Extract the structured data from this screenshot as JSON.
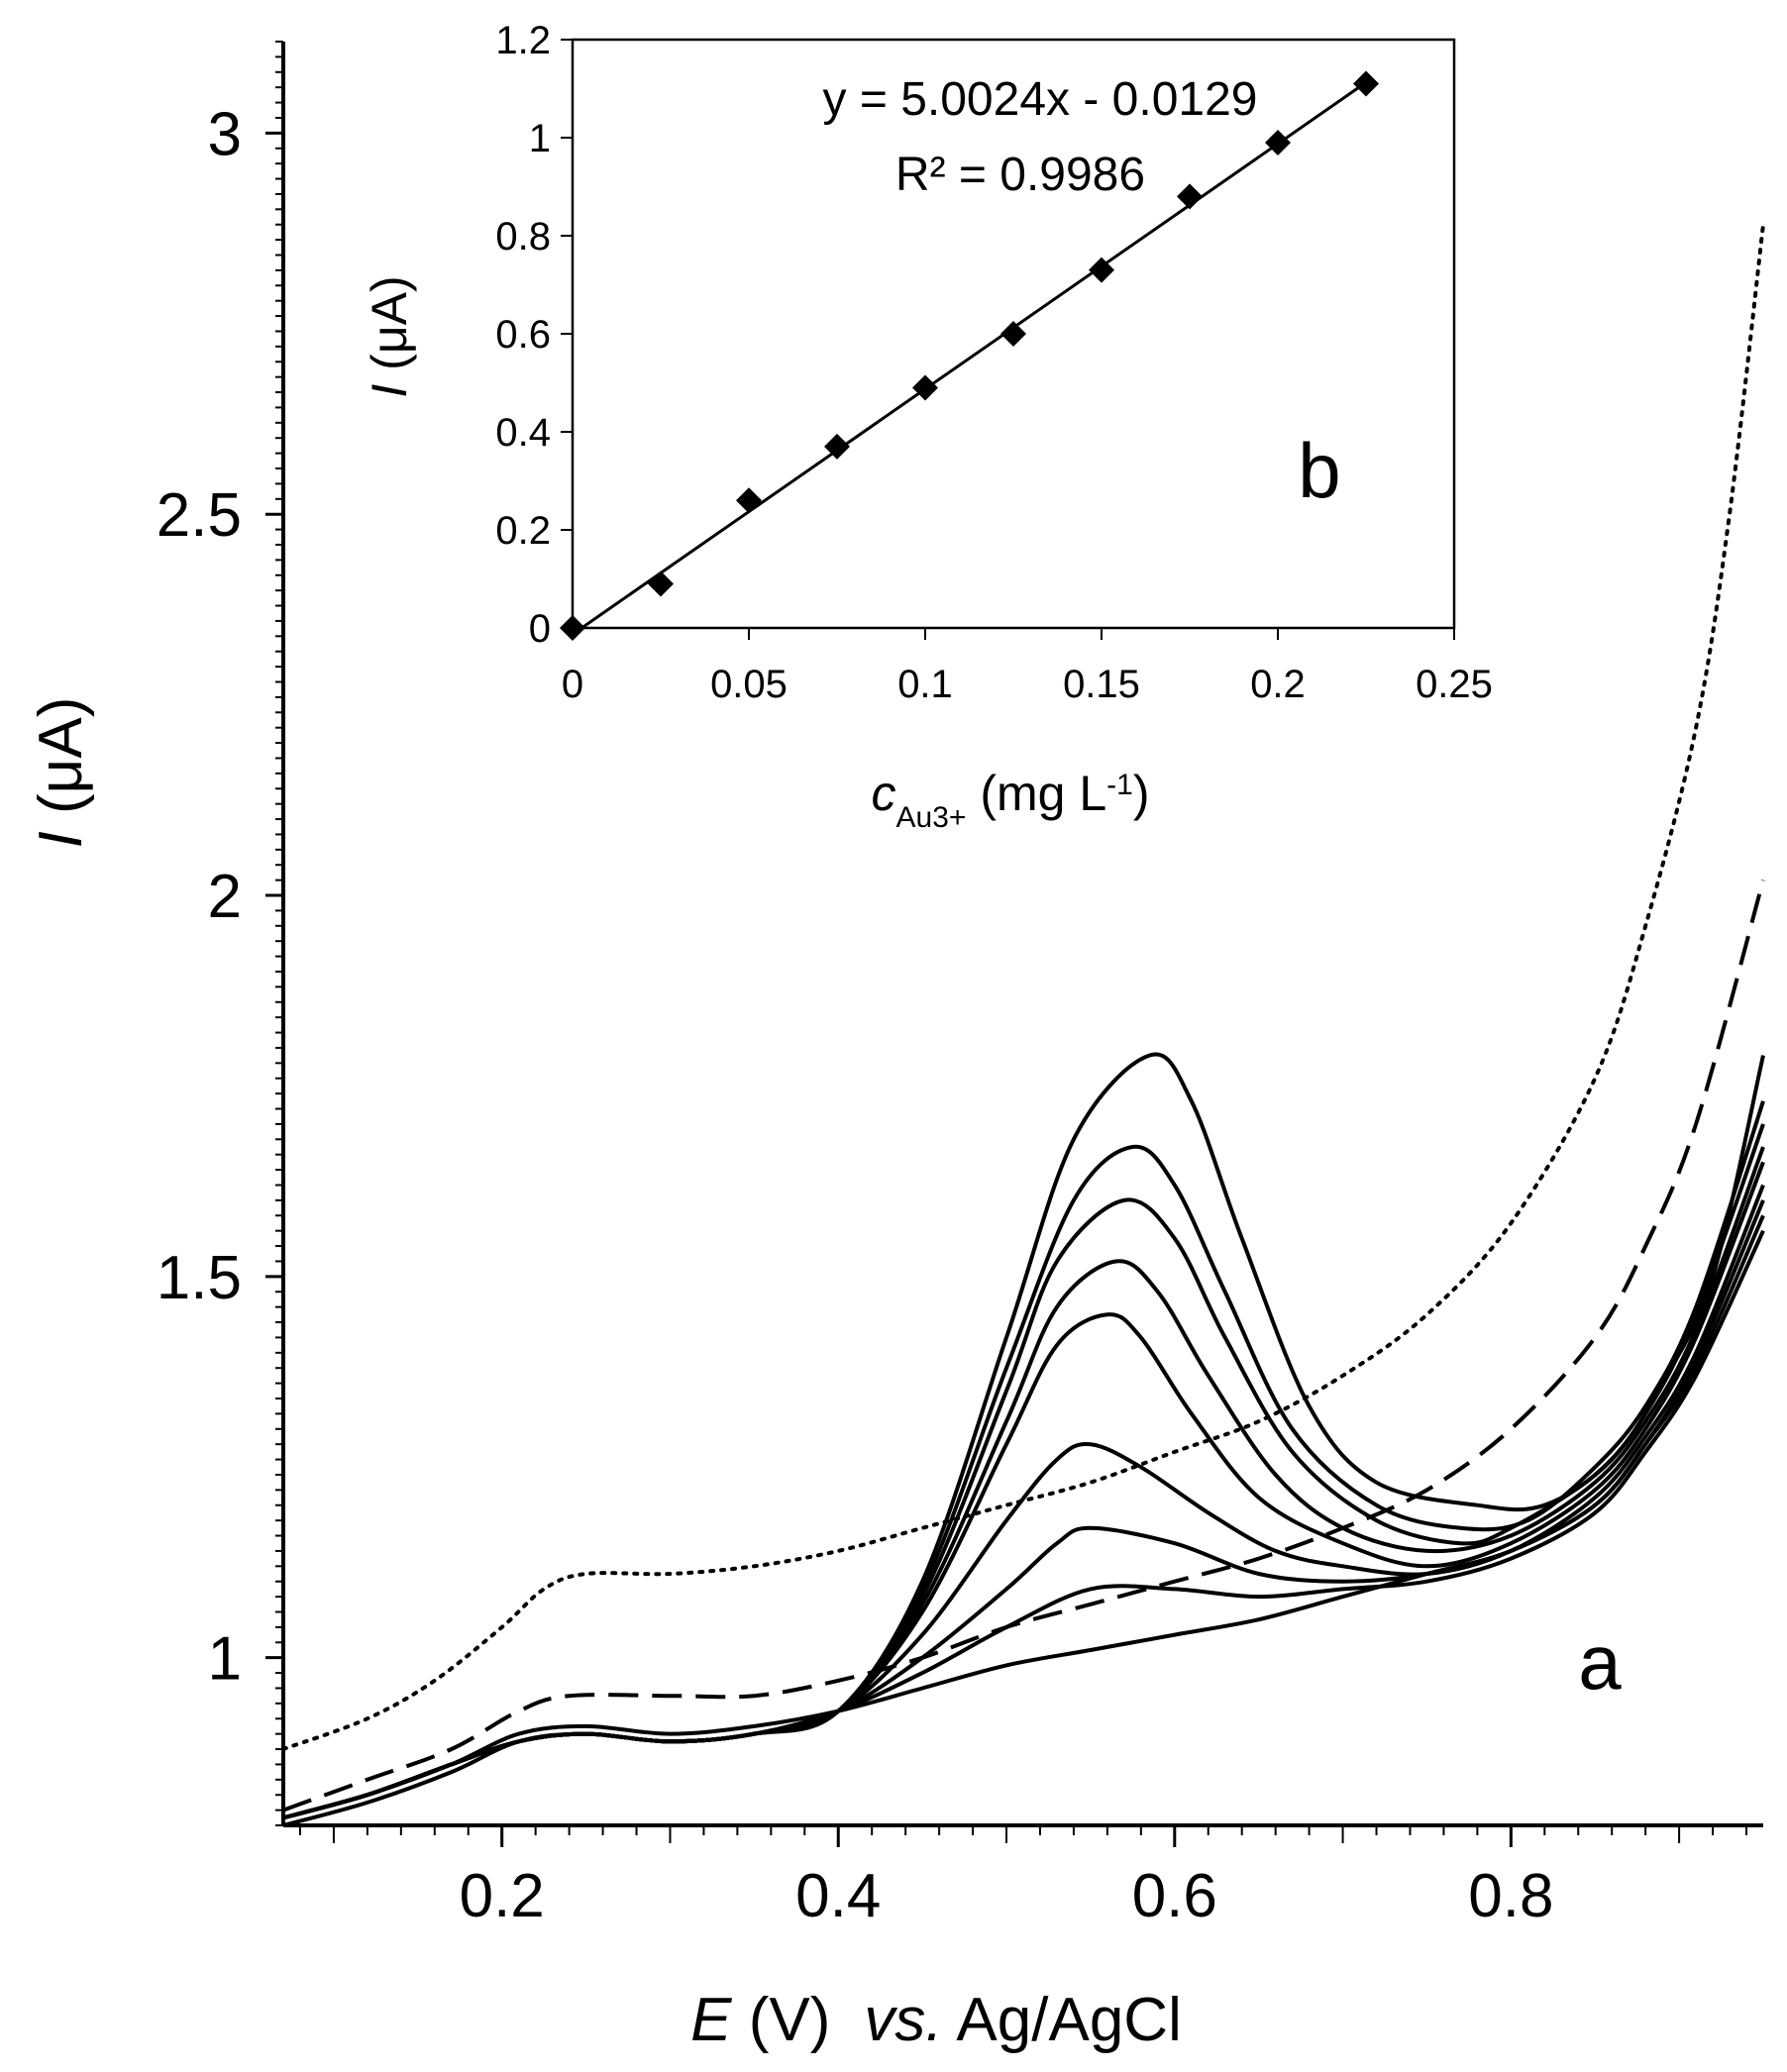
{
  "chart_data": [
    {
      "id": "panel-a",
      "type": "line",
      "panel_label": "a",
      "xlabel": {
        "symbol": "E",
        "unit": " (V)",
        "vs": "vs.",
        "ref": " Ag/AgCl"
      },
      "ylabel": {
        "symbol": "I",
        "unit": " (μA)"
      },
      "xlim": [
        0.07,
        0.95
      ],
      "ylim": [
        0.78,
        3.12
      ],
      "x_ticks": [
        0.2,
        0.4,
        0.6,
        0.8
      ],
      "x_tick_labels": [
        "0.2",
        "0.4",
        "0.6",
        "0.8"
      ],
      "y_ticks": [
        1,
        1.5,
        2,
        2.5,
        3
      ],
      "y_tick_labels": [
        "1",
        "1.5",
        "2",
        "2.5",
        "3"
      ],
      "x_minor_step": 0.02,
      "y_minor_step": 0.02,
      "series": [
        {
          "name": "dotted",
          "style": "dotted",
          "points": [
            [
              0.07,
              0.88
            ],
            [
              0.12,
              0.92
            ],
            [
              0.16,
              0.97
            ],
            [
              0.2,
              1.04
            ],
            [
              0.225,
              1.09
            ],
            [
              0.25,
              1.11
            ],
            [
              0.3,
              1.11
            ],
            [
              0.35,
              1.12
            ],
            [
              0.4,
              1.14
            ],
            [
              0.45,
              1.17
            ],
            [
              0.5,
              1.2
            ],
            [
              0.55,
              1.23
            ],
            [
              0.6,
              1.27
            ],
            [
              0.65,
              1.31
            ],
            [
              0.7,
              1.37
            ],
            [
              0.75,
              1.45
            ],
            [
              0.8,
              1.57
            ],
            [
              0.85,
              1.76
            ],
            [
              0.88,
              1.96
            ],
            [
              0.91,
              2.22
            ],
            [
              0.93,
              2.5
            ],
            [
              0.95,
              2.88
            ]
          ]
        },
        {
          "name": "dashed",
          "style": "dashed",
          "points": [
            [
              0.07,
              0.8
            ],
            [
              0.12,
              0.84
            ],
            [
              0.17,
              0.88
            ],
            [
              0.21,
              0.93
            ],
            [
              0.24,
              0.95
            ],
            [
              0.3,
              0.95
            ],
            [
              0.35,
              0.95
            ],
            [
              0.4,
              0.97
            ],
            [
              0.45,
              1.0
            ],
            [
              0.5,
              1.04
            ],
            [
              0.55,
              1.07
            ],
            [
              0.6,
              1.1
            ],
            [
              0.65,
              1.13
            ],
            [
              0.7,
              1.17
            ],
            [
              0.75,
              1.22
            ],
            [
              0.8,
              1.3
            ],
            [
              0.85,
              1.42
            ],
            [
              0.88,
              1.54
            ],
            [
              0.91,
              1.7
            ],
            [
              0.95,
              2.02
            ]
          ]
        },
        {
          "name": "solid-1",
          "style": "solid",
          "peak": 1.02,
          "points": [
            [
              0.07,
              0.79
            ],
            [
              0.12,
              0.82
            ],
            [
              0.17,
              0.86
            ],
            [
              0.21,
              0.9
            ],
            [
              0.25,
              0.91
            ],
            [
              0.3,
              0.9
            ],
            [
              0.35,
              0.91
            ],
            [
              0.4,
              0.93
            ],
            [
              0.45,
              0.96
            ],
            [
              0.5,
              0.99
            ],
            [
              0.55,
              1.01
            ],
            [
              0.6,
              1.03
            ],
            [
              0.65,
              1.05
            ],
            [
              0.7,
              1.08
            ],
            [
              0.75,
              1.11
            ],
            [
              0.8,
              1.14
            ],
            [
              0.85,
              1.2
            ],
            [
              0.88,
              1.28
            ],
            [
              0.91,
              1.38
            ],
            [
              0.95,
              1.58
            ]
          ]
        },
        {
          "name": "solid-2",
          "style": "solid",
          "peak": 1.09,
          "points": [
            [
              0.07,
              0.78
            ],
            [
              0.12,
              0.81
            ],
            [
              0.17,
              0.85
            ],
            [
              0.21,
              0.89
            ],
            [
              0.25,
              0.9
            ],
            [
              0.3,
              0.89
            ],
            [
              0.35,
              0.9
            ],
            [
              0.4,
              0.93
            ],
            [
              0.45,
              0.98
            ],
            [
              0.5,
              1.04
            ],
            [
              0.55,
              1.09
            ],
            [
              0.6,
              1.09
            ],
            [
              0.65,
              1.08
            ],
            [
              0.7,
              1.09
            ],
            [
              0.75,
              1.1
            ],
            [
              0.8,
              1.13
            ],
            [
              0.85,
              1.19
            ],
            [
              0.88,
              1.27
            ],
            [
              0.91,
              1.37
            ],
            [
              0.95,
              1.56
            ]
          ]
        },
        {
          "name": "solid-3",
          "style": "solid",
          "peak": 1.17,
          "points": [
            [
              0.07,
              0.79
            ],
            [
              0.12,
              0.82
            ],
            [
              0.17,
              0.86
            ],
            [
              0.21,
              0.89
            ],
            [
              0.25,
              0.9
            ],
            [
              0.3,
              0.89
            ],
            [
              0.35,
              0.9
            ],
            [
              0.4,
              0.93
            ],
            [
              0.45,
              1.0
            ],
            [
              0.5,
              1.09
            ],
            [
              0.53,
              1.15
            ],
            [
              0.55,
              1.17
            ],
            [
              0.6,
              1.15
            ],
            [
              0.65,
              1.11
            ],
            [
              0.7,
              1.1
            ],
            [
              0.75,
              1.11
            ],
            [
              0.8,
              1.14
            ],
            [
              0.85,
              1.2
            ],
            [
              0.88,
              1.28
            ],
            [
              0.91,
              1.39
            ],
            [
              0.95,
              1.6
            ]
          ]
        },
        {
          "name": "solid-4",
          "style": "solid",
          "peak": 1.28,
          "points": [
            [
              0.07,
              0.79
            ],
            [
              0.12,
              0.82
            ],
            [
              0.17,
              0.86
            ],
            [
              0.21,
              0.89
            ],
            [
              0.25,
              0.9
            ],
            [
              0.3,
              0.89
            ],
            [
              0.35,
              0.9
            ],
            [
              0.4,
              0.93
            ],
            [
              0.45,
              1.03
            ],
            [
              0.5,
              1.18
            ],
            [
              0.53,
              1.26
            ],
            [
              0.55,
              1.28
            ],
            [
              0.58,
              1.25
            ],
            [
              0.62,
              1.19
            ],
            [
              0.66,
              1.14
            ],
            [
              0.7,
              1.12
            ],
            [
              0.75,
              1.11
            ],
            [
              0.8,
              1.14
            ],
            [
              0.85,
              1.21
            ],
            [
              0.88,
              1.29
            ],
            [
              0.91,
              1.4
            ],
            [
              0.95,
              1.62
            ]
          ]
        },
        {
          "name": "solid-5",
          "style": "solid",
          "peak": 1.45,
          "points": [
            [
              0.07,
              0.79
            ],
            [
              0.12,
              0.82
            ],
            [
              0.17,
              0.86
            ],
            [
              0.21,
              0.89
            ],
            [
              0.25,
              0.9
            ],
            [
              0.3,
              0.89
            ],
            [
              0.35,
              0.9
            ],
            [
              0.4,
              0.93
            ],
            [
              0.45,
              1.06
            ],
            [
              0.5,
              1.28
            ],
            [
              0.53,
              1.41
            ],
            [
              0.56,
              1.45
            ],
            [
              0.58,
              1.42
            ],
            [
              0.61,
              1.32
            ],
            [
              0.65,
              1.21
            ],
            [
              0.7,
              1.15
            ],
            [
              0.75,
              1.12
            ],
            [
              0.8,
              1.15
            ],
            [
              0.85,
              1.22
            ],
            [
              0.88,
              1.3
            ],
            [
              0.91,
              1.42
            ],
            [
              0.95,
              1.65
            ]
          ]
        },
        {
          "name": "solid-6",
          "style": "solid",
          "peak": 1.52,
          "points": [
            [
              0.07,
              0.79
            ],
            [
              0.12,
              0.82
            ],
            [
              0.17,
              0.86
            ],
            [
              0.21,
              0.89
            ],
            [
              0.25,
              0.9
            ],
            [
              0.3,
              0.89
            ],
            [
              0.35,
              0.9
            ],
            [
              0.4,
              0.93
            ],
            [
              0.45,
              1.07
            ],
            [
              0.5,
              1.31
            ],
            [
              0.53,
              1.46
            ],
            [
              0.565,
              1.52
            ],
            [
              0.59,
              1.48
            ],
            [
              0.62,
              1.37
            ],
            [
              0.66,
              1.24
            ],
            [
              0.7,
              1.17
            ],
            [
              0.75,
              1.14
            ],
            [
              0.8,
              1.16
            ],
            [
              0.85,
              1.23
            ],
            [
              0.88,
              1.31
            ],
            [
              0.91,
              1.43
            ],
            [
              0.95,
              1.67
            ]
          ]
        },
        {
          "name": "solid-7",
          "style": "solid",
          "peak": 1.6,
          "points": [
            [
              0.07,
              0.79
            ],
            [
              0.12,
              0.82
            ],
            [
              0.17,
              0.86
            ],
            [
              0.21,
              0.89
            ],
            [
              0.25,
              0.9
            ],
            [
              0.3,
              0.89
            ],
            [
              0.35,
              0.9
            ],
            [
              0.4,
              0.93
            ],
            [
              0.45,
              1.08
            ],
            [
              0.5,
              1.35
            ],
            [
              0.53,
              1.52
            ],
            [
              0.57,
              1.6
            ],
            [
              0.6,
              1.55
            ],
            [
              0.63,
              1.42
            ],
            [
              0.67,
              1.27
            ],
            [
              0.72,
              1.18
            ],
            [
              0.77,
              1.15
            ],
            [
              0.8,
              1.17
            ],
            [
              0.85,
              1.24
            ],
            [
              0.88,
              1.32
            ],
            [
              0.91,
              1.45
            ],
            [
              0.95,
              1.7
            ]
          ]
        },
        {
          "name": "solid-8",
          "style": "solid",
          "peak": 1.67,
          "points": [
            [
              0.07,
              0.79
            ],
            [
              0.12,
              0.82
            ],
            [
              0.17,
              0.86
            ],
            [
              0.21,
              0.89
            ],
            [
              0.25,
              0.9
            ],
            [
              0.3,
              0.89
            ],
            [
              0.35,
              0.9
            ],
            [
              0.4,
              0.93
            ],
            [
              0.45,
              1.09
            ],
            [
              0.5,
              1.38
            ],
            [
              0.54,
              1.6
            ],
            [
              0.575,
              1.67
            ],
            [
              0.6,
              1.62
            ],
            [
              0.63,
              1.48
            ],
            [
              0.67,
              1.3
            ],
            [
              0.72,
              1.2
            ],
            [
              0.77,
              1.17
            ],
            [
              0.81,
              1.18
            ],
            [
              0.85,
              1.25
            ],
            [
              0.88,
              1.33
            ],
            [
              0.91,
              1.46
            ],
            [
              0.95,
              1.73
            ]
          ]
        },
        {
          "name": "solid-9",
          "style": "solid",
          "peak": 1.79,
          "points": [
            [
              0.07,
              0.79
            ],
            [
              0.12,
              0.82
            ],
            [
              0.17,
              0.86
            ],
            [
              0.21,
              0.89
            ],
            [
              0.25,
              0.9
            ],
            [
              0.3,
              0.89
            ],
            [
              0.35,
              0.9
            ],
            [
              0.4,
              0.93
            ],
            [
              0.45,
              1.1
            ],
            [
              0.5,
              1.42
            ],
            [
              0.54,
              1.68
            ],
            [
              0.585,
              1.79
            ],
            [
              0.61,
              1.73
            ],
            [
              0.64,
              1.55
            ],
            [
              0.68,
              1.33
            ],
            [
              0.72,
              1.23
            ],
            [
              0.78,
              1.2
            ],
            [
              0.82,
              1.2
            ],
            [
              0.86,
              1.26
            ],
            [
              0.89,
              1.36
            ],
            [
              0.92,
              1.5
            ],
            [
              0.95,
              1.79
            ]
          ]
        }
      ]
    },
    {
      "id": "panel-b",
      "type": "scatter",
      "panel_label": "b",
      "xlabel": {
        "symbol": "c",
        "subscript": "Au3+",
        "unit": " (mg L",
        "sup": "-1",
        "close": ")"
      },
      "ylabel": {
        "symbol": "I",
        "unit": " (μA)"
      },
      "xlim": [
        0,
        0.25
      ],
      "ylim": [
        0,
        1.2
      ],
      "x_ticks": [
        0,
        0.05,
        0.1,
        0.15,
        0.2,
        0.25
      ],
      "x_tick_labels": [
        "0",
        "0.05",
        "0.1",
        "0.15",
        "0.2",
        "0.25"
      ],
      "y_ticks": [
        0,
        0.2,
        0.4,
        0.6,
        0.8,
        1,
        1.2
      ],
      "y_tick_labels": [
        "0",
        "0.2",
        "0.4",
        "0.6",
        "0.8",
        "1",
        "1.2"
      ],
      "x": [
        0,
        0.025,
        0.05,
        0.075,
        0.1,
        0.125,
        0.15,
        0.175,
        0.2,
        0.225
      ],
      "y": [
        0,
        0.09,
        0.26,
        0.37,
        0.49,
        0.6,
        0.73,
        0.88,
        0.99,
        1.11
      ],
      "fit": {
        "slope": 5.0024,
        "intercept": -0.0129,
        "x_range": [
          0.003,
          0.225
        ]
      },
      "equation": "y = 5.0024x - 0.0129",
      "r2_label": "R² = 0.9986"
    }
  ]
}
